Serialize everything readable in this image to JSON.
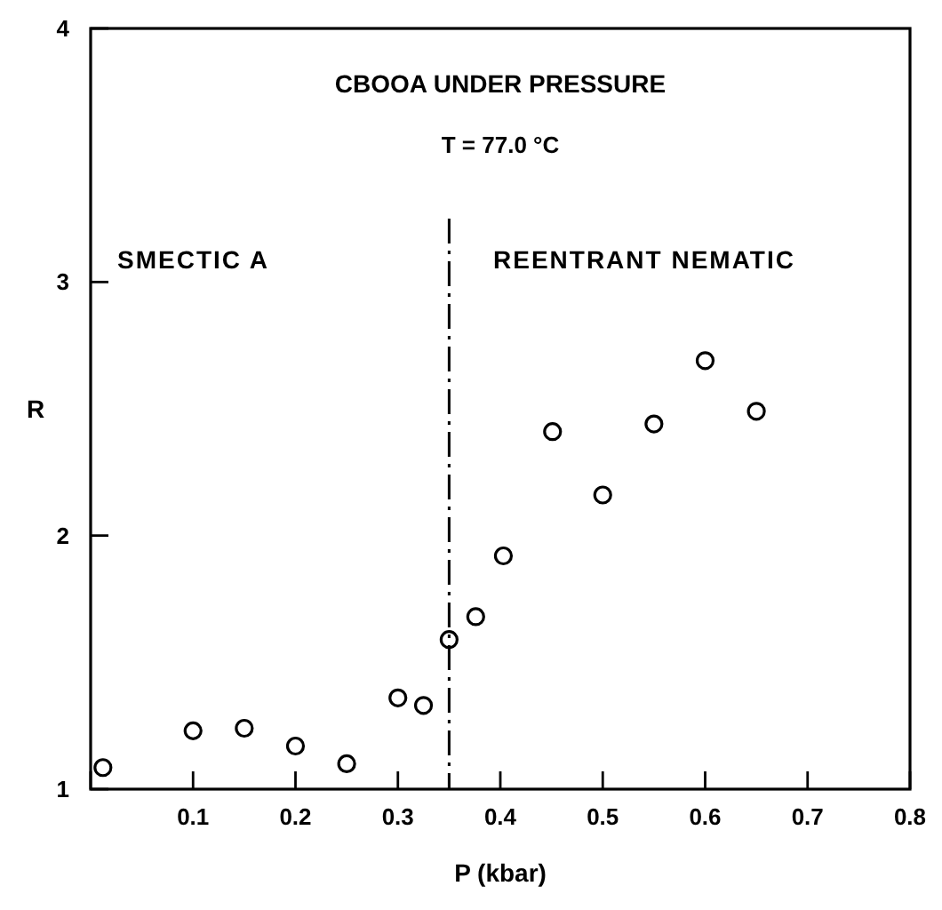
{
  "chart_data": {
    "type": "scatter",
    "title": "CBOOA UNDER PRESSURE",
    "subtitle": "T = 77.0 °C",
    "xlabel": "P (kbar)",
    "ylabel": "R",
    "x": [
      0.012,
      0.1,
      0.15,
      0.2,
      0.25,
      0.3,
      0.325,
      0.35,
      0.376,
      0.403,
      0.451,
      0.5,
      0.55,
      0.6,
      0.65
    ],
    "values": [
      1.085,
      1.23,
      1.24,
      1.17,
      1.1,
      1.36,
      1.33,
      1.59,
      1.68,
      1.92,
      2.41,
      2.16,
      2.44,
      2.69,
      2.49
    ],
    "color": "#000000",
    "marker": "circle",
    "xlim": [
      0,
      0.8
    ],
    "xticks": [
      {
        "value": 0,
        "label": null
      },
      0.1,
      0.2,
      0.3,
      0.4,
      0.5,
      0.6,
      0.7,
      0.8
    ],
    "ylim": [
      1,
      4
    ],
    "yticks": [
      1,
      2,
      3,
      4
    ],
    "grid": false,
    "ref_lines": [
      {
        "axis": "x",
        "value": 0.35,
        "color": "#000000",
        "line_style": "dashed"
      }
    ],
    "annotations": [
      "SMECTIC A",
      "REENTRANT NEMATIC"
    ]
  }
}
